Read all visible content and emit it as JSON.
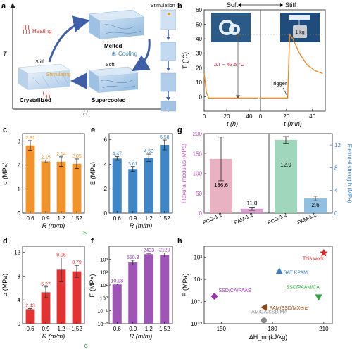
{
  "panel_labels": {
    "a": "a",
    "b": "b",
    "c": "c",
    "d": "d",
    "e": "e",
    "f": "f",
    "g": "g",
    "h": "h"
  },
  "panel_a": {
    "y_axis": "T",
    "x_axis": "H",
    "states": {
      "crystallized": "Crystallized",
      "melted": "Melted",
      "supercooled": "Supercooled"
    },
    "process_labels": {
      "heating": "Heating",
      "cooling": "Cooling",
      "stimulating": "Stimulating",
      "stimulation": "Stimulation"
    },
    "stiffness_labels": {
      "stiff": "Stiff",
      "soft": "Soft"
    },
    "colors": {
      "heating": "#d42a2a",
      "cooling": "#3b86c8",
      "stimulating": "#e8a020",
      "arrow": "#3f5fa8"
    }
  },
  "chart_data": [
    {
      "id": "b",
      "type": "line",
      "title_left": "Soft",
      "title_right": "Stiff",
      "ylabel": "T (°C)",
      "xlabel_left": "t (h)",
      "xlabel_right": "t (min)",
      "ylim": [
        -10,
        60
      ],
      "yticks": [
        "0",
        "10",
        "20",
        "30",
        "40",
        "50",
        "60"
      ],
      "xticks_left": [
        "0",
        "20",
        "40"
      ],
      "xticks_right": [
        "0",
        "20",
        "40"
      ],
      "annotations": {
        "delta_t": "ΔT ~ 43.5 °C",
        "trigger": "Trigger",
        "weight": "1 kg"
      },
      "series_left": {
        "x": [
          0,
          2,
          4,
          48
        ],
        "y": [
          16,
          3,
          -1,
          -1
        ]
      },
      "series_right": {
        "x": [
          0,
          21,
          22.5,
          25,
          30,
          36,
          42,
          48
        ],
        "y": [
          -1,
          -1,
          43,
          40,
          30,
          22,
          18,
          16
        ]
      },
      "color": "#ee8a23"
    },
    {
      "id": "c",
      "type": "bar",
      "ylabel": "σ (MPa)",
      "xlabel": "R (m/m)",
      "categories": [
        "0.6",
        "0.9",
        "1.2",
        "1.52"
      ],
      "values": [
        2.81,
        2.15,
        2.14,
        2.05
      ],
      "errors": [
        0.2,
        0.05,
        0.2,
        0.2
      ],
      "value_labels": [
        "2.81",
        "2.15",
        "2.14",
        "2.05"
      ],
      "ylim": [
        0,
        3.3
      ],
      "yticks": [
        0,
        1,
        2,
        3
      ],
      "subtitle": "Supercooled PCGs",
      "color": "#f2922a"
    },
    {
      "id": "d",
      "type": "bar",
      "ylabel": "σ (MPa)",
      "xlabel": "R (m/m)",
      "categories": [
        "0.6",
        "0.9",
        "1.2",
        "1.52"
      ],
      "values": [
        2.43,
        5.27,
        9.06,
        8.79
      ],
      "errors": [
        0.1,
        0.9,
        2.0,
        1.0
      ],
      "value_labels": [
        "2.43",
        "5.27",
        "9.06",
        "8.79"
      ],
      "ylim": [
        0,
        13
      ],
      "yticks": [
        0,
        4,
        8,
        12
      ],
      "subtitle": "Crystallized PCGs",
      "color": "#e33232"
    },
    {
      "id": "e",
      "type": "bar",
      "ylabel": "E (MPa)",
      "xlabel": "R (m/m)",
      "categories": [
        "0.6",
        "0.9",
        "1.2",
        "1.52"
      ],
      "values": [
        4.47,
        3.61,
        4.53,
        5.58
      ],
      "errors": [
        0.15,
        0.2,
        0.3,
        0.4
      ],
      "value_labels": [
        "4.47",
        "3.61",
        "4.53",
        "5.58"
      ],
      "ylim": [
        0,
        6.5
      ],
      "yticks": [
        0,
        2,
        4,
        6
      ],
      "color": "#3f86c6"
    },
    {
      "id": "f",
      "type": "bar",
      "scale": "log",
      "ylabel": "E (MPa)",
      "xlabel": "R (m/m)",
      "categories": [
        "0.6",
        "0.9",
        "1.2",
        "1.52"
      ],
      "values": [
        10.98,
        550.3,
        2433,
        2120
      ],
      "errors_factor": [
        1.1,
        1.5,
        1.15,
        1.4
      ],
      "value_labels": [
        "10.98",
        "550.3",
        "2433",
        "2120"
      ],
      "ylim": [
        0.01,
        10000
      ],
      "yticks": [
        "10⁻²",
        "10⁻¹",
        "10⁰",
        "10¹",
        "10²",
        "10³"
      ],
      "color": "#9f55b6"
    },
    {
      "id": "g",
      "type": "bar",
      "ylabel_left": "Flexural modulus (MPa)",
      "ylabel_right": "Flexural strength (MPa)",
      "categories_left": [
        "PCG-1.2",
        "PAM-1.2"
      ],
      "categories_right": [
        "PCG-1.2",
        "PAM-1.2"
      ],
      "modulus_values": [
        136.6,
        11.0
      ],
      "modulus_errors": [
        55,
        4
      ],
      "modulus_labels": [
        "136.6",
        "11.0"
      ],
      "strength_values": [
        12.9,
        2.6
      ],
      "strength_errors": [
        0.6,
        0.4
      ],
      "strength_labels": [
        "12.9",
        "2.6"
      ],
      "ylim_left": [
        0,
        200
      ],
      "yticks_left": [
        0,
        50,
        100,
        150,
        200
      ],
      "ylim_right": [
        0,
        14
      ],
      "yticks_right": [
        0,
        4,
        8,
        12
      ],
      "color_left": "#c14fb8",
      "color_right": "#3f86c6"
    },
    {
      "id": "h",
      "type": "scatter",
      "xlabel": "ΔH_m (kJ/kg)",
      "ylabel": "E (MPa)",
      "xlim": [
        140,
        215
      ],
      "xticks": [
        "150",
        "180",
        "210"
      ],
      "ylim": [
        0.001,
        10000
      ],
      "yticks": [
        "10⁻³",
        "10⁻¹",
        "10¹",
        "10³"
      ],
      "points": [
        {
          "name": "This work",
          "x": 210,
          "y": 2433,
          "color": "#e02020",
          "marker": "star"
        },
        {
          "name": "SAT KPAM",
          "x": 184,
          "y": 57,
          "color": "#3b7fc4",
          "marker": "triangle-up"
        },
        {
          "name": "SSD/PAAM/CA",
          "x": 207,
          "y": 0.25,
          "color": "#2aa43a",
          "marker": "triangle-down"
        },
        {
          "name": "SSD/CA/PAAS",
          "x": 146,
          "y": 0.3,
          "color": "#9b2fb0",
          "marker": "diamond"
        },
        {
          "name": "PAM/SSD/MXene",
          "x": 175,
          "y": 0.03,
          "color": "#8b4513",
          "marker": "triangle-left"
        },
        {
          "name": "PAM/CA/SSD/MA",
          "x": 175,
          "y": 0.002,
          "color": "#888888",
          "marker": "circle"
        }
      ]
    }
  ]
}
